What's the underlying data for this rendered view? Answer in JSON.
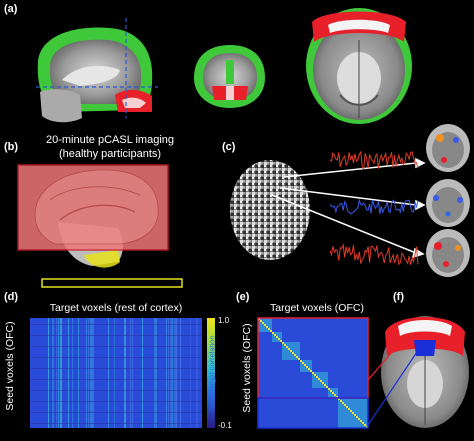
{
  "panels": {
    "a": {
      "label": "(a)"
    },
    "b": {
      "label": "(b)",
      "caption_line1": "20-minute pCASL imaging",
      "caption_line2": "(healthy participants)"
    },
    "c": {
      "label": "(c)"
    },
    "d": {
      "label": "(d)",
      "title": "Target voxels (rest of cortex)",
      "ylabel": "Seed voxels (OFC)",
      "colorbar_max": "1.0",
      "colorbar_min": "-0.1",
      "colorbar_label": "Seed-target correlation"
    },
    "e": {
      "label": "(e)",
      "title": "Target voxels (OFC)",
      "ylabel": "Seed voxels (OFC)"
    },
    "f": {
      "label": "(f)"
    }
  },
  "colors": {
    "background": "#000000",
    "roi_red": "#e8202a",
    "roi_green": "#3ec83a",
    "roi_blue": "#1a2fd8",
    "pink_overlay": "#f07878",
    "yellow_bar": "#e6e21a",
    "trace_red": "#e03a2a",
    "trace_blue": "#3a5ae8",
    "matrix_blue": "#2a4ad8",
    "matrix_cyan": "#35c0d8"
  }
}
